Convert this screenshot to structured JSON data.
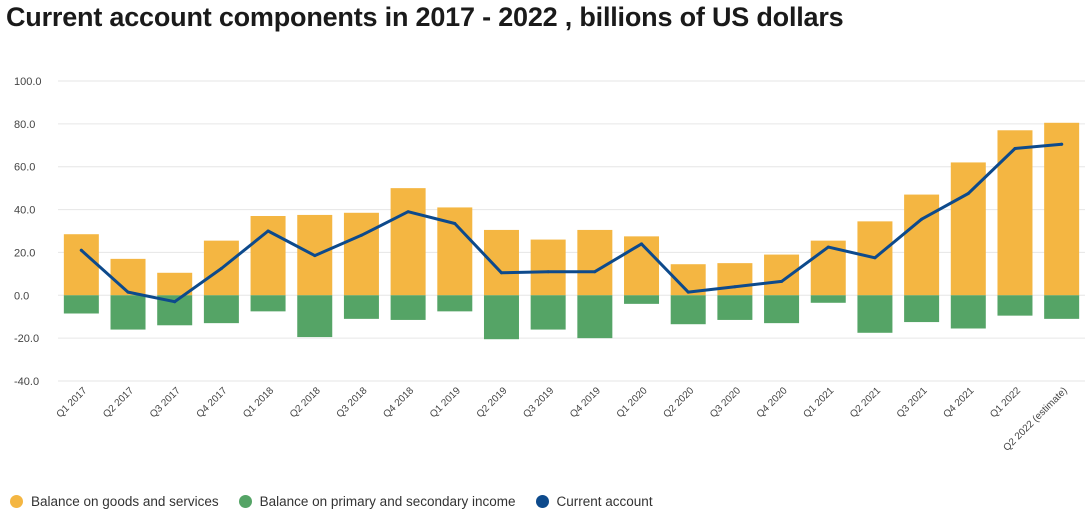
{
  "title": "Current account components in 2017 - 2022 , billions of US dollars",
  "colors": {
    "goods_services": "#f4b642",
    "income": "#55a466",
    "current_account": "#0d4a8c",
    "grid": "#e6e6e6",
    "axis_text": "#444444"
  },
  "legend": [
    {
      "label": "Balance on goods and services",
      "color": "#f4b642"
    },
    {
      "label": "Balance on primary and secondary income",
      "color": "#55a466"
    },
    {
      "label": "Current account",
      "color": "#0d4a8c"
    }
  ],
  "chart_data": {
    "type": "bar",
    "title": "Current account components in 2017 - 2022 , billions of US dollars",
    "categories": [
      "Q1 2017",
      "Q2 2017",
      "Q3 2017",
      "Q4 2017",
      "Q1 2018",
      "Q2 2018",
      "Q3 2018",
      "Q4 2018",
      "Q1 2019",
      "Q2 2019",
      "Q3 2019",
      "Q4 2019",
      "Q1 2020",
      "Q2 2020",
      "Q3 2020",
      "Q4 2020",
      "Q1 2021",
      "Q2 2021",
      "Q3 2021",
      "Q4 2021",
      "Q1 2022",
      "Q2 2022 (estimate)"
    ],
    "series": [
      {
        "name": "Balance on goods and services",
        "type": "bar",
        "values": [
          28.5,
          17.0,
          10.5,
          25.5,
          37.0,
          37.5,
          38.5,
          50.0,
          41.0,
          30.5,
          26.0,
          30.5,
          27.5,
          14.5,
          15.0,
          19.0,
          25.5,
          34.5,
          47.0,
          62.0,
          77.0,
          80.5
        ]
      },
      {
        "name": "Balance on primary and secondary income",
        "type": "bar",
        "values": [
          -8.5,
          -16.0,
          -14.0,
          -13.0,
          -7.5,
          -19.5,
          -11.0,
          -11.5,
          -7.5,
          -20.5,
          -16.0,
          -20.0,
          -4.0,
          -13.5,
          -11.5,
          -13.0,
          -3.5,
          -17.5,
          -12.5,
          -15.5,
          -9.5,
          -11.0
        ]
      },
      {
        "name": "Current account",
        "type": "line",
        "values": [
          21.0,
          1.5,
          -3.0,
          12.5,
          30.0,
          18.5,
          28.0,
          39.0,
          33.5,
          10.5,
          11.0,
          11.0,
          24.0,
          1.5,
          4.0,
          6.5,
          22.5,
          17.5,
          35.5,
          47.5,
          68.5,
          70.5
        ]
      }
    ],
    "yticks": [
      "100.0",
      "80.0",
      "60.0",
      "40.0",
      "20.0",
      "0.0",
      "-20.0",
      "-40.0"
    ],
    "ylim": [
      -40,
      100
    ],
    "grid": true,
    "legend_position": "bottom-left"
  }
}
